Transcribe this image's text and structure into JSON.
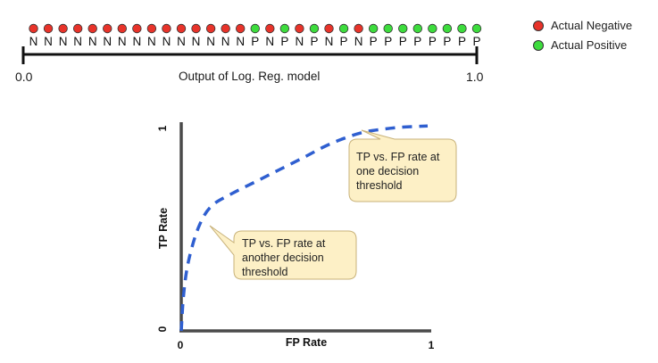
{
  "strip": {
    "labels": [
      "N",
      "N",
      "N",
      "N",
      "N",
      "N",
      "N",
      "N",
      "N",
      "N",
      "N",
      "N",
      "N",
      "N",
      "N",
      "P",
      "N",
      "P",
      "N",
      "P",
      "N",
      "P",
      "N",
      "P",
      "P",
      "P",
      "P",
      "P",
      "P",
      "P",
      "P"
    ],
    "left_value": "0.0",
    "right_value": "1.0",
    "axis_caption": "Output of Log. Reg. model"
  },
  "legend": {
    "negative": "Actual Negative",
    "positive": "Actual Positive"
  },
  "colors": {
    "negative": "#e8332a",
    "positive": "#3ddc3d",
    "curve": "#2f5fd0",
    "callout_fill": "#fdf0c6",
    "callout_stroke": "#c8b27a"
  },
  "roc": {
    "x_label": "FP Rate",
    "y_label": "TP Rate",
    "x_min": "0",
    "x_max": "1",
    "y_min": "0",
    "y_max": "1",
    "curve_fpr": [
      0,
      0.01,
      0.03,
      0.07,
      0.12,
      0.2,
      0.3,
      0.4,
      0.5,
      0.58,
      0.66,
      0.74,
      0.82,
      0.9,
      1.0
    ],
    "curve_tpr": [
      0,
      0.18,
      0.34,
      0.5,
      0.6,
      0.66,
      0.72,
      0.78,
      0.84,
      0.89,
      0.93,
      0.96,
      0.975,
      0.985,
      0.99
    ]
  },
  "callouts": [
    {
      "text_lines": [
        "TP vs. FP rate at",
        "one decision",
        "threshold"
      ]
    },
    {
      "text_lines": [
        "TP vs. FP rate at",
        "another decision",
        "threshold"
      ]
    }
  ]
}
